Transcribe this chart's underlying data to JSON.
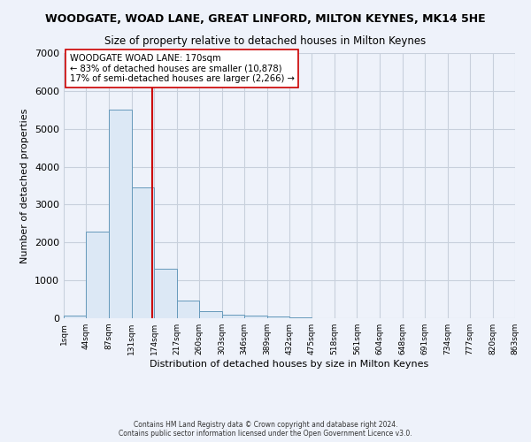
{
  "title": "WOODGATE, WOAD LANE, GREAT LINFORD, MILTON KEYNES, MK14 5HE",
  "subtitle": "Size of property relative to detached houses in Milton Keynes",
  "xlabel": "Distribution of detached houses by size in Milton Keynes",
  "ylabel": "Number of detached properties",
  "bin_edges": [
    1,
    44,
    87,
    131,
    174,
    217,
    260,
    303,
    346,
    389,
    432,
    475,
    518,
    561,
    604,
    648,
    691,
    734,
    777,
    820,
    863
  ],
  "bar_heights": [
    75,
    2280,
    5500,
    3450,
    1300,
    470,
    180,
    100,
    60,
    40,
    30,
    0,
    0,
    0,
    0,
    0,
    0,
    0,
    0,
    0
  ],
  "bar_color": "#dce8f5",
  "bar_edge_color": "#6699bb",
  "vline_x": 170,
  "vline_color": "#cc0000",
  "ylim": [
    0,
    7000
  ],
  "annotation_line1": "WOODGATE WOAD LANE: 170sqm",
  "annotation_line2": "← 83% of detached houses are smaller (10,878)",
  "annotation_line3": "17% of semi-detached houses are larger (2,266) →",
  "annotation_box_color": "#ffffff",
  "annotation_box_edge_color": "#cc0000",
  "tick_labels": [
    "1sqm",
    "44sqm",
    "87sqm",
    "131sqm",
    "174sqm",
    "217sqm",
    "260sqm",
    "303sqm",
    "346sqm",
    "389sqm",
    "432sqm",
    "475sqm",
    "518sqm",
    "561sqm",
    "604sqm",
    "648sqm",
    "691sqm",
    "734sqm",
    "777sqm",
    "820sqm",
    "863sqm"
  ],
  "footer_text": "Contains HM Land Registry data © Crown copyright and database right 2024.\nContains public sector information licensed under the Open Government Licence v3.0.",
  "bg_color": "#eef2fa",
  "plot_bg_color": "#eef2fa",
  "grid_color": "#c8d0dc"
}
